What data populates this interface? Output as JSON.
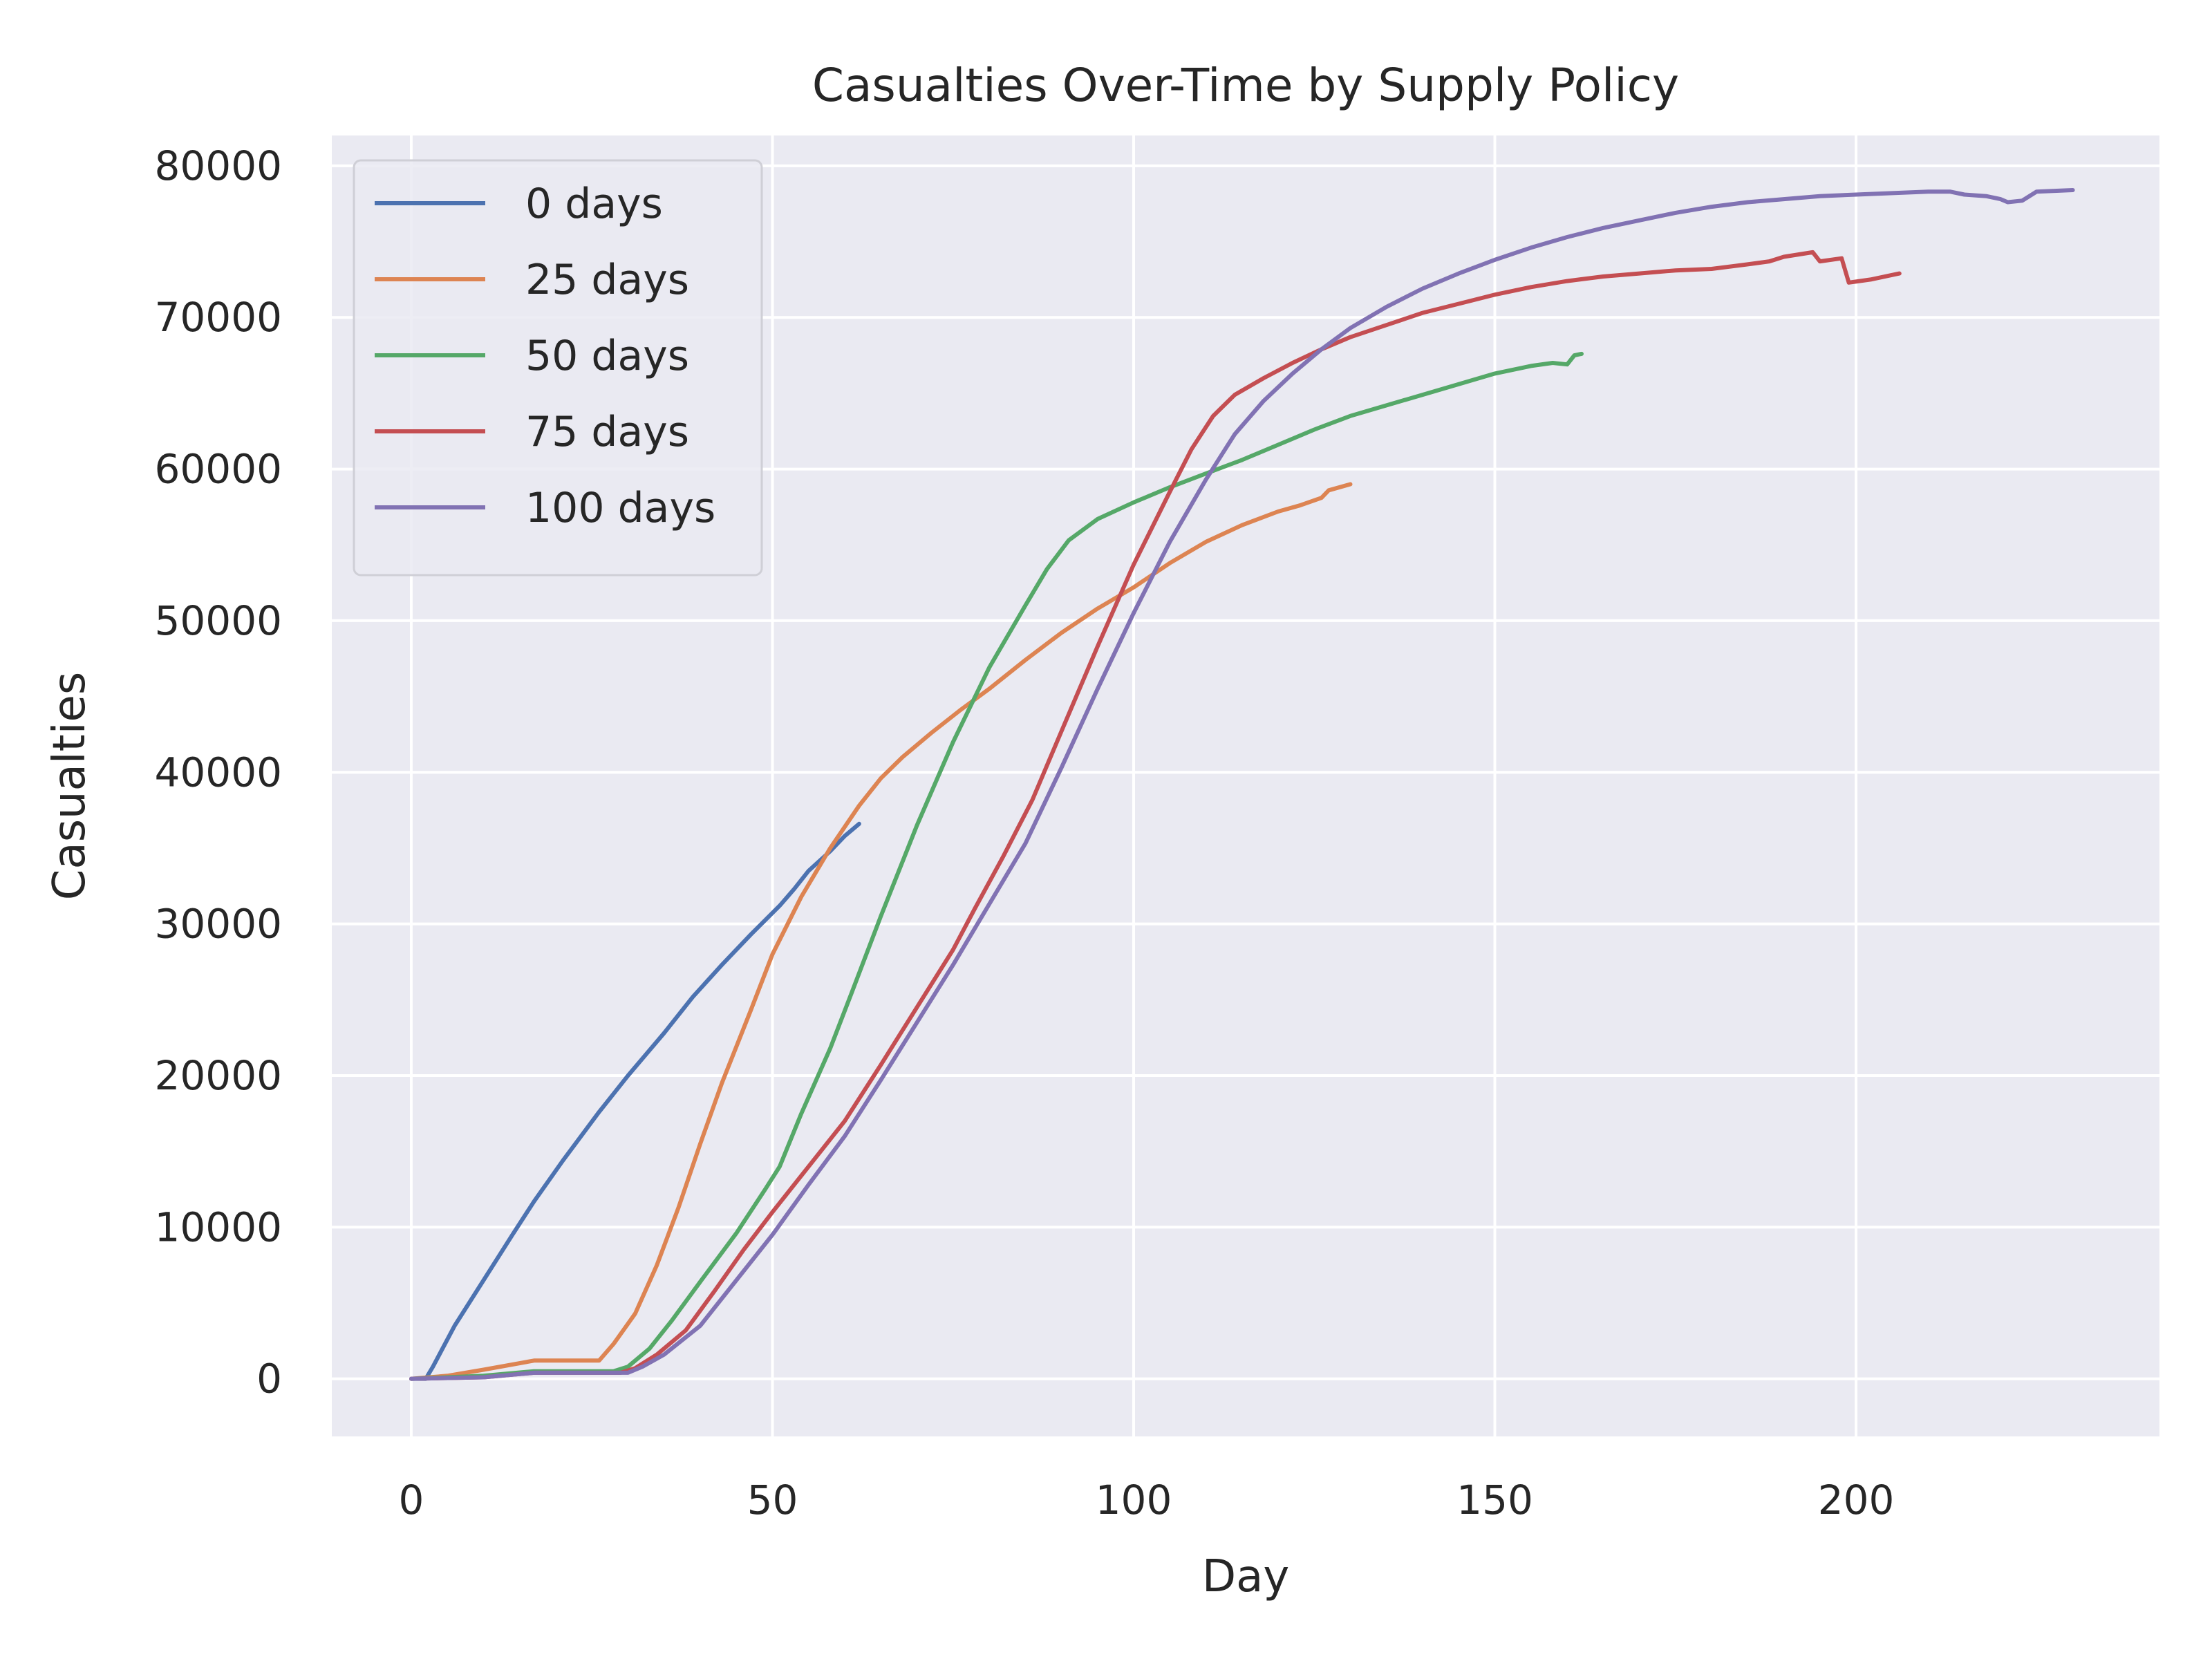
{
  "chart_data": {
    "type": "line",
    "title": "Casualties Over-Time by Supply Policy",
    "xlabel": "Day",
    "ylabel": "Casualties",
    "xlim": [
      -11,
      242
    ],
    "ylim": [
      -3800,
      82000
    ],
    "xticks": [
      0,
      50,
      100,
      150,
      200
    ],
    "yticks": [
      0,
      10000,
      20000,
      30000,
      40000,
      50000,
      60000,
      70000,
      80000
    ],
    "grid": true,
    "legend_position": "top-left",
    "background": "#EAEAF2",
    "series": [
      {
        "name": "0 days",
        "color": "#4C72B0",
        "points": [
          [
            0,
            0
          ],
          [
            2,
            0
          ],
          [
            3,
            800
          ],
          [
            6,
            3500
          ],
          [
            10,
            6500
          ],
          [
            14,
            9500
          ],
          [
            17,
            11700
          ],
          [
            21,
            14400
          ],
          [
            26,
            17600
          ],
          [
            30,
            20000
          ],
          [
            35,
            22800
          ],
          [
            39,
            25200
          ],
          [
            43,
            27300
          ],
          [
            47,
            29300
          ],
          [
            51,
            31200
          ],
          [
            53,
            32300
          ],
          [
            55,
            33500
          ],
          [
            58,
            34800
          ],
          [
            60,
            35800
          ],
          [
            62,
            36600
          ]
        ]
      },
      {
        "name": "25 days",
        "color": "#DD8452",
        "points": [
          [
            0,
            0
          ],
          [
            5,
            200
          ],
          [
            10,
            600
          ],
          [
            17,
            1200
          ],
          [
            26,
            1200
          ],
          [
            28,
            2300
          ],
          [
            31,
            4300
          ],
          [
            34,
            7500
          ],
          [
            37,
            11300
          ],
          [
            40,
            15500
          ],
          [
            43,
            19500
          ],
          [
            47,
            24300
          ],
          [
            50,
            28000
          ],
          [
            54,
            31800
          ],
          [
            58,
            35000
          ],
          [
            62,
            37800
          ],
          [
            65,
            39600
          ],
          [
            68,
            41000
          ],
          [
            72,
            42600
          ],
          [
            76,
            44100
          ],
          [
            80,
            45500
          ],
          [
            85,
            47400
          ],
          [
            90,
            49200
          ],
          [
            95,
            50800
          ],
          [
            100,
            52200
          ],
          [
            105,
            53800
          ],
          [
            110,
            55200
          ],
          [
            115,
            56300
          ],
          [
            120,
            57200
          ],
          [
            123,
            57600
          ],
          [
            126,
            58100
          ],
          [
            127,
            58600
          ],
          [
            130,
            59000
          ]
        ]
      },
      {
        "name": "50 days",
        "color": "#55A868",
        "points": [
          [
            0,
            0
          ],
          [
            10,
            200
          ],
          [
            17,
            500
          ],
          [
            28,
            500
          ],
          [
            30,
            800
          ],
          [
            33,
            2000
          ],
          [
            36,
            3800
          ],
          [
            40,
            6400
          ],
          [
            45,
            9600
          ],
          [
            49,
            12500
          ],
          [
            51,
            14000
          ],
          [
            54,
            17500
          ],
          [
            58,
            21800
          ],
          [
            61,
            25500
          ],
          [
            65,
            30500
          ],
          [
            70,
            36500
          ],
          [
            75,
            42000
          ],
          [
            80,
            46900
          ],
          [
            85,
            51000
          ],
          [
            88,
            53400
          ],
          [
            91,
            55300
          ],
          [
            95,
            56700
          ],
          [
            100,
            57800
          ],
          [
            105,
            58800
          ],
          [
            110,
            59700
          ],
          [
            115,
            60600
          ],
          [
            120,
            61600
          ],
          [
            125,
            62600
          ],
          [
            130,
            63500
          ],
          [
            135,
            64200
          ],
          [
            140,
            64900
          ],
          [
            145,
            65600
          ],
          [
            150,
            66300
          ],
          [
            155,
            66800
          ],
          [
            158,
            67000
          ],
          [
            160,
            66900
          ],
          [
            161,
            67500
          ],
          [
            162,
            67600
          ]
        ]
      },
      {
        "name": "75 days",
        "color": "#C44E52",
        "points": [
          [
            0,
            0
          ],
          [
            10,
            100
          ],
          [
            17,
            400
          ],
          [
            29,
            400
          ],
          [
            31,
            700
          ],
          [
            34,
            1600
          ],
          [
            38,
            3200
          ],
          [
            42,
            5800
          ],
          [
            46,
            8500
          ],
          [
            50,
            11000
          ],
          [
            55,
            14000
          ],
          [
            60,
            17000
          ],
          [
            65,
            20700
          ],
          [
            70,
            24500
          ],
          [
            75,
            28300
          ],
          [
            78,
            31000
          ],
          [
            82,
            34500
          ],
          [
            86,
            38200
          ],
          [
            90,
            42700
          ],
          [
            95,
            48300
          ],
          [
            100,
            53700
          ],
          [
            105,
            58500
          ],
          [
            108,
            61300
          ],
          [
            111,
            63500
          ],
          [
            114,
            64900
          ],
          [
            118,
            66000
          ],
          [
            122,
            67000
          ],
          [
            126,
            67900
          ],
          [
            130,
            68700
          ],
          [
            135,
            69500
          ],
          [
            140,
            70300
          ],
          [
            145,
            70900
          ],
          [
            150,
            71500
          ],
          [
            155,
            72000
          ],
          [
            160,
            72400
          ],
          [
            165,
            72700
          ],
          [
            170,
            72900
          ],
          [
            175,
            73100
          ],
          [
            180,
            73200
          ],
          [
            185,
            73500
          ],
          [
            188,
            73700
          ],
          [
            190,
            74000
          ],
          [
            194,
            74300
          ],
          [
            195,
            73700
          ],
          [
            198,
            73900
          ],
          [
            199,
            72300
          ],
          [
            202,
            72500
          ],
          [
            206,
            72900
          ]
        ]
      },
      {
        "name": "100 days",
        "color": "#8172B3",
        "points": [
          [
            0,
            0
          ],
          [
            10,
            100
          ],
          [
            17,
            400
          ],
          [
            30,
            400
          ],
          [
            32,
            800
          ],
          [
            35,
            1600
          ],
          [
            40,
            3500
          ],
          [
            45,
            6500
          ],
          [
            50,
            9500
          ],
          [
            55,
            12800
          ],
          [
            60,
            16000
          ],
          [
            65,
            19700
          ],
          [
            70,
            23500
          ],
          [
            75,
            27300
          ],
          [
            80,
            31300
          ],
          [
            85,
            35300
          ],
          [
            90,
            40300
          ],
          [
            95,
            45500
          ],
          [
            100,
            50500
          ],
          [
            105,
            55200
          ],
          [
            110,
            59300
          ],
          [
            114,
            62300
          ],
          [
            118,
            64500
          ],
          [
            122,
            66300
          ],
          [
            126,
            67900
          ],
          [
            130,
            69300
          ],
          [
            135,
            70700
          ],
          [
            140,
            71900
          ],
          [
            145,
            72900
          ],
          [
            150,
            73800
          ],
          [
            155,
            74600
          ],
          [
            160,
            75300
          ],
          [
            165,
            75900
          ],
          [
            170,
            76400
          ],
          [
            175,
            76900
          ],
          [
            180,
            77300
          ],
          [
            185,
            77600
          ],
          [
            190,
            77800
          ],
          [
            195,
            78000
          ],
          [
            200,
            78100
          ],
          [
            205,
            78200
          ],
          [
            210,
            78300
          ],
          [
            213,
            78300
          ],
          [
            215,
            78100
          ],
          [
            218,
            78000
          ],
          [
            220,
            77800
          ],
          [
            221,
            77600
          ],
          [
            223,
            77700
          ],
          [
            225,
            78300
          ],
          [
            230,
            78400
          ]
        ]
      }
    ]
  }
}
